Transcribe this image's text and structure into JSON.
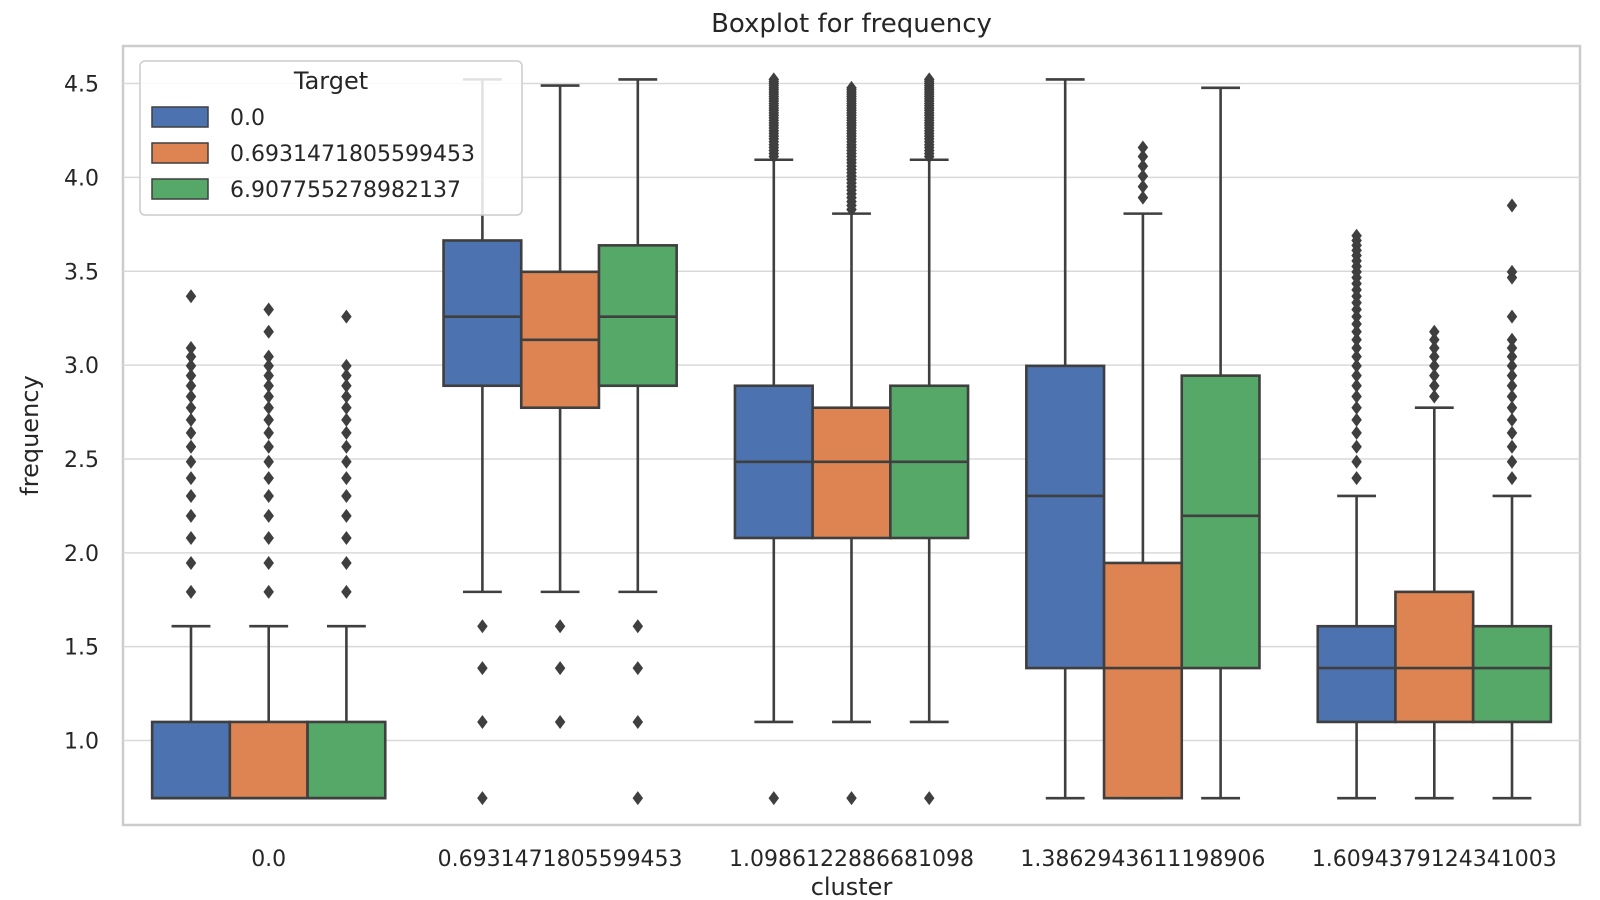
{
  "chart_data": {
    "type": "box",
    "title": "Boxplot for frequency",
    "xlabel": "cluster",
    "ylabel": "frequency",
    "ylim": [
      0.55,
      4.7
    ],
    "yticks": [
      1.0,
      1.5,
      2.0,
      2.5,
      3.0,
      3.5,
      4.0,
      4.5
    ],
    "ytick_labels": [
      "1.0",
      "1.5",
      "2.0",
      "2.5",
      "3.0",
      "3.5",
      "4.0",
      "4.5"
    ],
    "categories": [
      "0.0",
      "0.6931471805599453",
      "1.0986122886681098",
      "1.3862943611198906",
      "1.6094379124341003"
    ],
    "grid": true,
    "legend": {
      "title": "Target",
      "position": "top-left",
      "entries": [
        "0.0",
        "0.6931471805599453",
        "6.907755278982137"
      ]
    },
    "series": [
      {
        "name": "0.0",
        "color": "#4c72b0",
        "boxes": [
          {
            "whislo": 0.693,
            "q1": 0.693,
            "med": 0.693,
            "q3": 1.099,
            "whishi": 1.609,
            "fliers": [
              1.792,
              1.946,
              2.079,
              2.197,
              2.303,
              2.398,
              2.485,
              2.565,
              2.639,
              2.708,
              2.773,
              2.833,
              2.89,
              2.944,
              2.996,
              3.045,
              3.091,
              3.367
            ]
          },
          {
            "whislo": 1.792,
            "q1": 2.89,
            "med": 3.258,
            "q3": 3.664,
            "whishi": 4.522,
            "fliers": [
              0.693,
              1.099,
              1.386,
              1.609
            ]
          },
          {
            "whislo": 1.099,
            "q1": 2.079,
            "med": 2.485,
            "q3": 2.89,
            "whishi": 4.094,
            "fliers": [
              0.693,
              4.111,
              4.127,
              4.143,
              4.159,
              4.174,
              4.19,
              4.205,
              4.22,
              4.234,
              4.248,
              4.263,
              4.277,
              4.29,
              4.304,
              4.317,
              4.331,
              4.344,
              4.357,
              4.369,
              4.382,
              4.394,
              4.407,
              4.419,
              4.431,
              4.443,
              4.454,
              4.466,
              4.477,
              4.489,
              4.5,
              4.511,
              4.522
            ]
          },
          {
            "whislo": 0.693,
            "q1": 1.386,
            "med": 2.303,
            "q3": 2.996,
            "whishi": 4.522,
            "fliers": []
          },
          {
            "whislo": 0.693,
            "q1": 1.099,
            "med": 1.386,
            "q3": 1.609,
            "whishi": 2.303,
            "fliers": [
              2.398,
              2.485,
              2.565,
              2.639,
              2.708,
              2.773,
              2.833,
              2.89,
              2.944,
              2.996,
              3.045,
              3.091,
              3.135,
              3.178,
              3.219,
              3.258,
              3.296,
              3.332,
              3.367,
              3.401,
              3.434,
              3.466,
              3.497,
              3.526,
              3.555,
              3.584,
              3.611,
              3.638,
              3.664,
              3.689
            ]
          }
        ]
      },
      {
        "name": "0.6931471805599453",
        "color": "#dd8452",
        "boxes": [
          {
            "whislo": 0.693,
            "q1": 0.693,
            "med": 0.693,
            "q3": 1.099,
            "whishi": 1.609,
            "fliers": [
              1.792,
              1.946,
              2.079,
              2.197,
              2.303,
              2.398,
              2.485,
              2.565,
              2.639,
              2.708,
              2.773,
              2.833,
              2.89,
              2.944,
              2.996,
              3.045,
              3.178,
              3.296
            ]
          },
          {
            "whislo": 1.792,
            "q1": 2.773,
            "med": 3.135,
            "q3": 3.497,
            "whishi": 4.489,
            "fliers": [
              1.099,
              1.386,
              1.609
            ]
          },
          {
            "whislo": 1.099,
            "q1": 2.079,
            "med": 2.485,
            "q3": 2.773,
            "whishi": 3.807,
            "fliers": [
              0.693,
              3.829,
              3.85,
              3.871,
              3.892,
              3.912,
              3.932,
              3.951,
              3.97,
              3.989,
              4.007,
              4.025,
              4.043,
              4.06,
              4.078,
              4.094,
              4.111,
              4.127,
              4.143,
              4.159,
              4.174,
              4.19,
              4.205,
              4.22,
              4.234,
              4.248,
              4.263,
              4.277,
              4.29,
              4.304,
              4.317,
              4.331,
              4.344,
              4.357,
              4.369,
              4.382,
              4.394,
              4.407,
              4.419,
              4.431,
              4.443,
              4.454,
              4.466,
              4.477
            ]
          },
          {
            "whislo": 0.693,
            "q1": 0.693,
            "med": 1.386,
            "q3": 1.946,
            "whishi": 3.807,
            "fliers": [
              3.892,
              3.951,
              4.007,
              4.06,
              4.111,
              4.159
            ]
          },
          {
            "whislo": 0.693,
            "q1": 1.099,
            "med": 1.386,
            "q3": 1.792,
            "whishi": 2.773,
            "fliers": [
              2.833,
              2.89,
              2.944,
              2.996,
              3.045,
              3.091,
              3.135,
              3.178
            ]
          }
        ]
      },
      {
        "name": "6.907755278982137",
        "color": "#55a868",
        "boxes": [
          {
            "whislo": 0.693,
            "q1": 0.693,
            "med": 0.693,
            "q3": 1.099,
            "whishi": 1.609,
            "fliers": [
              1.792,
              1.946,
              2.079,
              2.197,
              2.303,
              2.398,
              2.485,
              2.565,
              2.639,
              2.708,
              2.773,
              2.833,
              2.89,
              2.944,
              2.996,
              3.258
            ]
          },
          {
            "whislo": 1.792,
            "q1": 2.89,
            "med": 3.258,
            "q3": 3.638,
            "whishi": 4.522,
            "fliers": [
              0.693,
              1.099,
              1.386,
              1.609
            ]
          },
          {
            "whislo": 1.099,
            "q1": 2.079,
            "med": 2.485,
            "q3": 2.89,
            "whishi": 4.094,
            "fliers": [
              0.693,
              4.111,
              4.127,
              4.143,
              4.159,
              4.174,
              4.19,
              4.205,
              4.22,
              4.234,
              4.248,
              4.263,
              4.277,
              4.29,
              4.304,
              4.317,
              4.331,
              4.344,
              4.357,
              4.369,
              4.382,
              4.394,
              4.407,
              4.419,
              4.431,
              4.443,
              4.454,
              4.466,
              4.477,
              4.489,
              4.5,
              4.511,
              4.522
            ]
          },
          {
            "whislo": 0.693,
            "q1": 1.386,
            "med": 2.197,
            "q3": 2.944,
            "whishi": 4.477,
            "fliers": []
          },
          {
            "whislo": 0.693,
            "q1": 1.099,
            "med": 1.386,
            "q3": 1.609,
            "whishi": 2.303,
            "fliers": [
              2.398,
              2.485,
              2.565,
              2.639,
              2.708,
              2.773,
              2.833,
              2.89,
              2.944,
              2.996,
              3.045,
              3.091,
              3.135,
              3.258,
              3.466,
              3.497,
              3.85
            ]
          }
        ]
      }
    ]
  }
}
